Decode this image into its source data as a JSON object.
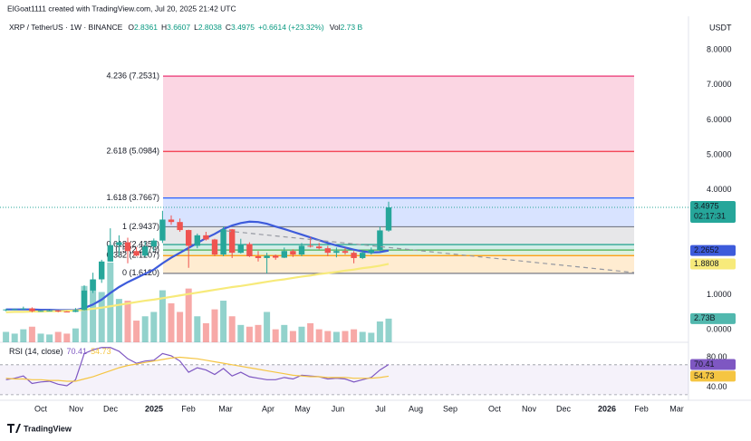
{
  "header": {
    "author_line": "ElGoat1111 created with TradingView.com, Jul 20, 2025 21:42 UTC",
    "symbol": "XRP / TetherUS · 1W · BINANCE",
    "ohlc_labels": [
      "O",
      "H",
      "L",
      "C"
    ],
    "change": "+0.6614 (+23.32%)",
    "vol_label": "Vol",
    "vol_value": "2.73 B",
    "currency": "USDT",
    "logo": "TradingView"
  },
  "chart_data": {
    "type": "candlestick",
    "open": [
      0.56,
      0.58,
      0.59,
      0.61,
      0.53,
      0.54,
      0.55,
      0.52,
      0.51,
      0.56,
      1.12,
      1.44,
      1.95,
      2.42,
      2.5,
      2.25,
      2.12,
      2.38,
      2.55,
      3.15,
      3.08,
      2.85,
      2.4,
      2.7,
      2.58,
      2.15,
      2.87,
      2.2,
      2.45,
      2.1,
      2.05,
      2.12,
      2.06,
      2.25,
      2.15,
      2.4,
      2.38,
      2.33,
      2.2,
      2.25,
      2.2,
      2.05,
      2.2,
      2.28,
      2.8361
    ],
    "high": [
      0.59,
      0.6,
      0.66,
      0.64,
      0.55,
      0.56,
      0.56,
      0.53,
      0.62,
      1.27,
      1.63,
      2.0,
      2.9,
      2.7,
      2.63,
      2.36,
      2.52,
      2.61,
      3.4,
      3.27,
      3.18,
      2.86,
      2.75,
      2.8,
      2.6,
      2.95,
      2.88,
      2.6,
      2.5,
      2.25,
      2.2,
      2.15,
      2.35,
      2.3,
      2.48,
      2.65,
      2.48,
      2.4,
      2.35,
      2.34,
      2.25,
      2.25,
      2.35,
      2.95,
      3.6607
    ],
    "low": [
      0.53,
      0.57,
      0.58,
      0.5,
      0.52,
      0.53,
      0.5,
      0.5,
      0.5,
      0.55,
      1.05,
      1.34,
      1.95,
      2.1,
      1.9,
      2.1,
      2.08,
      2.25,
      2.48,
      3.0,
      2.8,
      1.77,
      2.33,
      2.55,
      2.1,
      2.1,
      2.05,
      2.18,
      2.08,
      1.95,
      1.61,
      2.0,
      2.05,
      2.08,
      2.1,
      2.35,
      2.3,
      2.1,
      2.07,
      2.15,
      1.9,
      2.02,
      2.15,
      2.25,
      2.8038
    ],
    "close": [
      0.58,
      0.59,
      0.61,
      0.53,
      0.54,
      0.55,
      0.52,
      0.51,
      0.56,
      1.12,
      1.44,
      1.95,
      2.42,
      2.5,
      2.25,
      2.12,
      2.38,
      2.55,
      3.15,
      3.08,
      2.85,
      2.4,
      2.7,
      2.58,
      2.15,
      2.87,
      2.2,
      2.45,
      2.1,
      2.05,
      2.12,
      2.06,
      2.25,
      2.15,
      2.4,
      2.38,
      2.33,
      2.2,
      2.25,
      2.2,
      2.05,
      2.2,
      2.28,
      2.84,
      3.4975
    ],
    "up_color": "#26a69a",
    "down_color": "#ef5350",
    "close_label": "3.4975",
    "countdown": "02:17:31",
    "ylim": [
      -0.36,
      8.86
    ],
    "yticks": [
      {
        "value": 0,
        "label": "0.0000"
      },
      {
        "value": 1,
        "label": "1.0000"
      },
      {
        "value": 4,
        "label": "4.0000"
      },
      {
        "value": 5,
        "label": "5.0000"
      },
      {
        "value": 6,
        "label": "6.0000"
      },
      {
        "value": 7,
        "label": "7.0000"
      },
      {
        "value": 8,
        "label": "8.0000"
      }
    ],
    "x_labels": [
      "Oct",
      "Nov",
      "Dec",
      "2025",
      "Feb",
      "Mar",
      "Apr",
      "May",
      "Jun",
      "Jul",
      "Aug",
      "Sep",
      "Oct",
      "Nov",
      "Dec",
      "2026",
      "Feb",
      "Mar"
    ],
    "moving_averages": [
      {
        "color": "#3d5bdb",
        "last_label": "2.2652",
        "values": [
          0.58,
          0.58,
          0.58,
          0.58,
          0.57,
          0.57,
          0.56,
          0.56,
          0.56,
          0.62,
          0.72,
          0.86,
          1.05,
          1.22,
          1.36,
          1.48,
          1.6,
          1.72,
          1.9,
          2.06,
          2.2,
          2.34,
          2.48,
          2.62,
          2.74,
          2.88,
          2.98,
          3.05,
          3.09,
          3.08,
          3.03,
          2.95,
          2.88,
          2.8,
          2.72,
          2.64,
          2.56,
          2.48,
          2.41,
          2.35,
          2.29,
          2.24,
          2.21,
          2.22,
          2.2652
        ]
      },
      {
        "color": "#f7ea7a",
        "last_label": "1.8808",
        "values": [
          0.5,
          0.51,
          0.51,
          0.52,
          0.52,
          0.53,
          0.53,
          0.54,
          0.55,
          0.57,
          0.6,
          0.63,
          0.67,
          0.71,
          0.75,
          0.79,
          0.83,
          0.86,
          0.9,
          0.94,
          0.98,
          1.02,
          1.06,
          1.1,
          1.14,
          1.18,
          1.22,
          1.25,
          1.29,
          1.33,
          1.37,
          1.41,
          1.44,
          1.48,
          1.52,
          1.55,
          1.59,
          1.62,
          1.65,
          1.69,
          1.72,
          1.76,
          1.79,
          1.83,
          1.8808
        ]
      }
    ],
    "fib": {
      "levels": [
        {
          "price": 1.612,
          "label": "0 (1.6120)",
          "color": "#787b86"
        },
        {
          "price": 2.1207,
          "label": "0.382 (2.1207)",
          "color": "#ff9800"
        },
        {
          "price": 2.2779,
          "label": "0.5 (2.2779)",
          "color": "#4caf50"
        },
        {
          "price": 2.435,
          "label": "0.618 (2.4350)",
          "color": "#089981"
        },
        {
          "price": 2.9437,
          "label": "1 (2.9437)",
          "color": "#787b86"
        },
        {
          "price": 3.7667,
          "label": "1.618 (3.7667)",
          "color": "#2962ff"
        },
        {
          "price": 5.0984,
          "label": "2.618 (5.0984)",
          "color": "#f23645"
        },
        {
          "price": 7.2531,
          "label": "4.236 (7.2531)",
          "color": "#e91e63"
        }
      ]
    },
    "volume": {
      "ylim": [
        0,
        9.4
      ],
      "last_label": "2.73B",
      "values": [
        1.2,
        1.0,
        1.5,
        1.8,
        1.0,
        0.9,
        1.2,
        1.0,
        1.6,
        6.5,
        7.2,
        5.8,
        9.2,
        5.0,
        4.8,
        2.5,
        3.0,
        3.5,
        6.0,
        4.5,
        3.5,
        6.2,
        3.0,
        2.2,
        3.8,
        4.8,
        3.0,
        2.0,
        1.8,
        2.0,
        3.5,
        1.5,
        2.0,
        1.3,
        1.8,
        2.2,
        1.5,
        1.3,
        1.2,
        1.3,
        1.5,
        1.2,
        1.1,
        2.4,
        2.73
      ]
    },
    "rsi": {
      "title": "RSI (14, close)",
      "color": "#7e57c2",
      "ma_color": "#f5c542",
      "last_label": "70.41",
      "ma_last_label": "54.73",
      "ylim": [
        25,
        100
      ],
      "bands": [
        30,
        70
      ],
      "yticks": [
        {
          "value": 80,
          "label": "80.00"
        },
        {
          "value": 40,
          "label": "40.00"
        }
      ],
      "values": [
        50,
        52,
        55,
        45,
        47,
        48,
        44,
        42,
        50,
        85,
        90,
        93,
        93,
        88,
        78,
        72,
        75,
        76,
        85,
        82,
        75,
        60,
        66,
        63,
        57,
        65,
        55,
        60,
        54,
        52,
        50,
        50,
        53,
        51,
        56,
        55,
        54,
        51,
        52,
        51,
        47,
        50,
        53,
        63,
        70.41
      ],
      "ma_values": [
        52,
        51,
        51,
        50,
        50,
        49,
        49,
        48,
        48,
        51,
        54,
        58,
        62,
        66,
        69,
        71,
        73,
        75,
        77,
        79,
        80,
        79,
        78,
        76,
        74,
        72,
        70,
        68,
        66,
        64,
        62,
        60,
        58,
        56,
        55,
        54,
        54,
        53,
        53,
        53,
        52,
        52,
        52,
        53,
        54.73
      ]
    }
  }
}
